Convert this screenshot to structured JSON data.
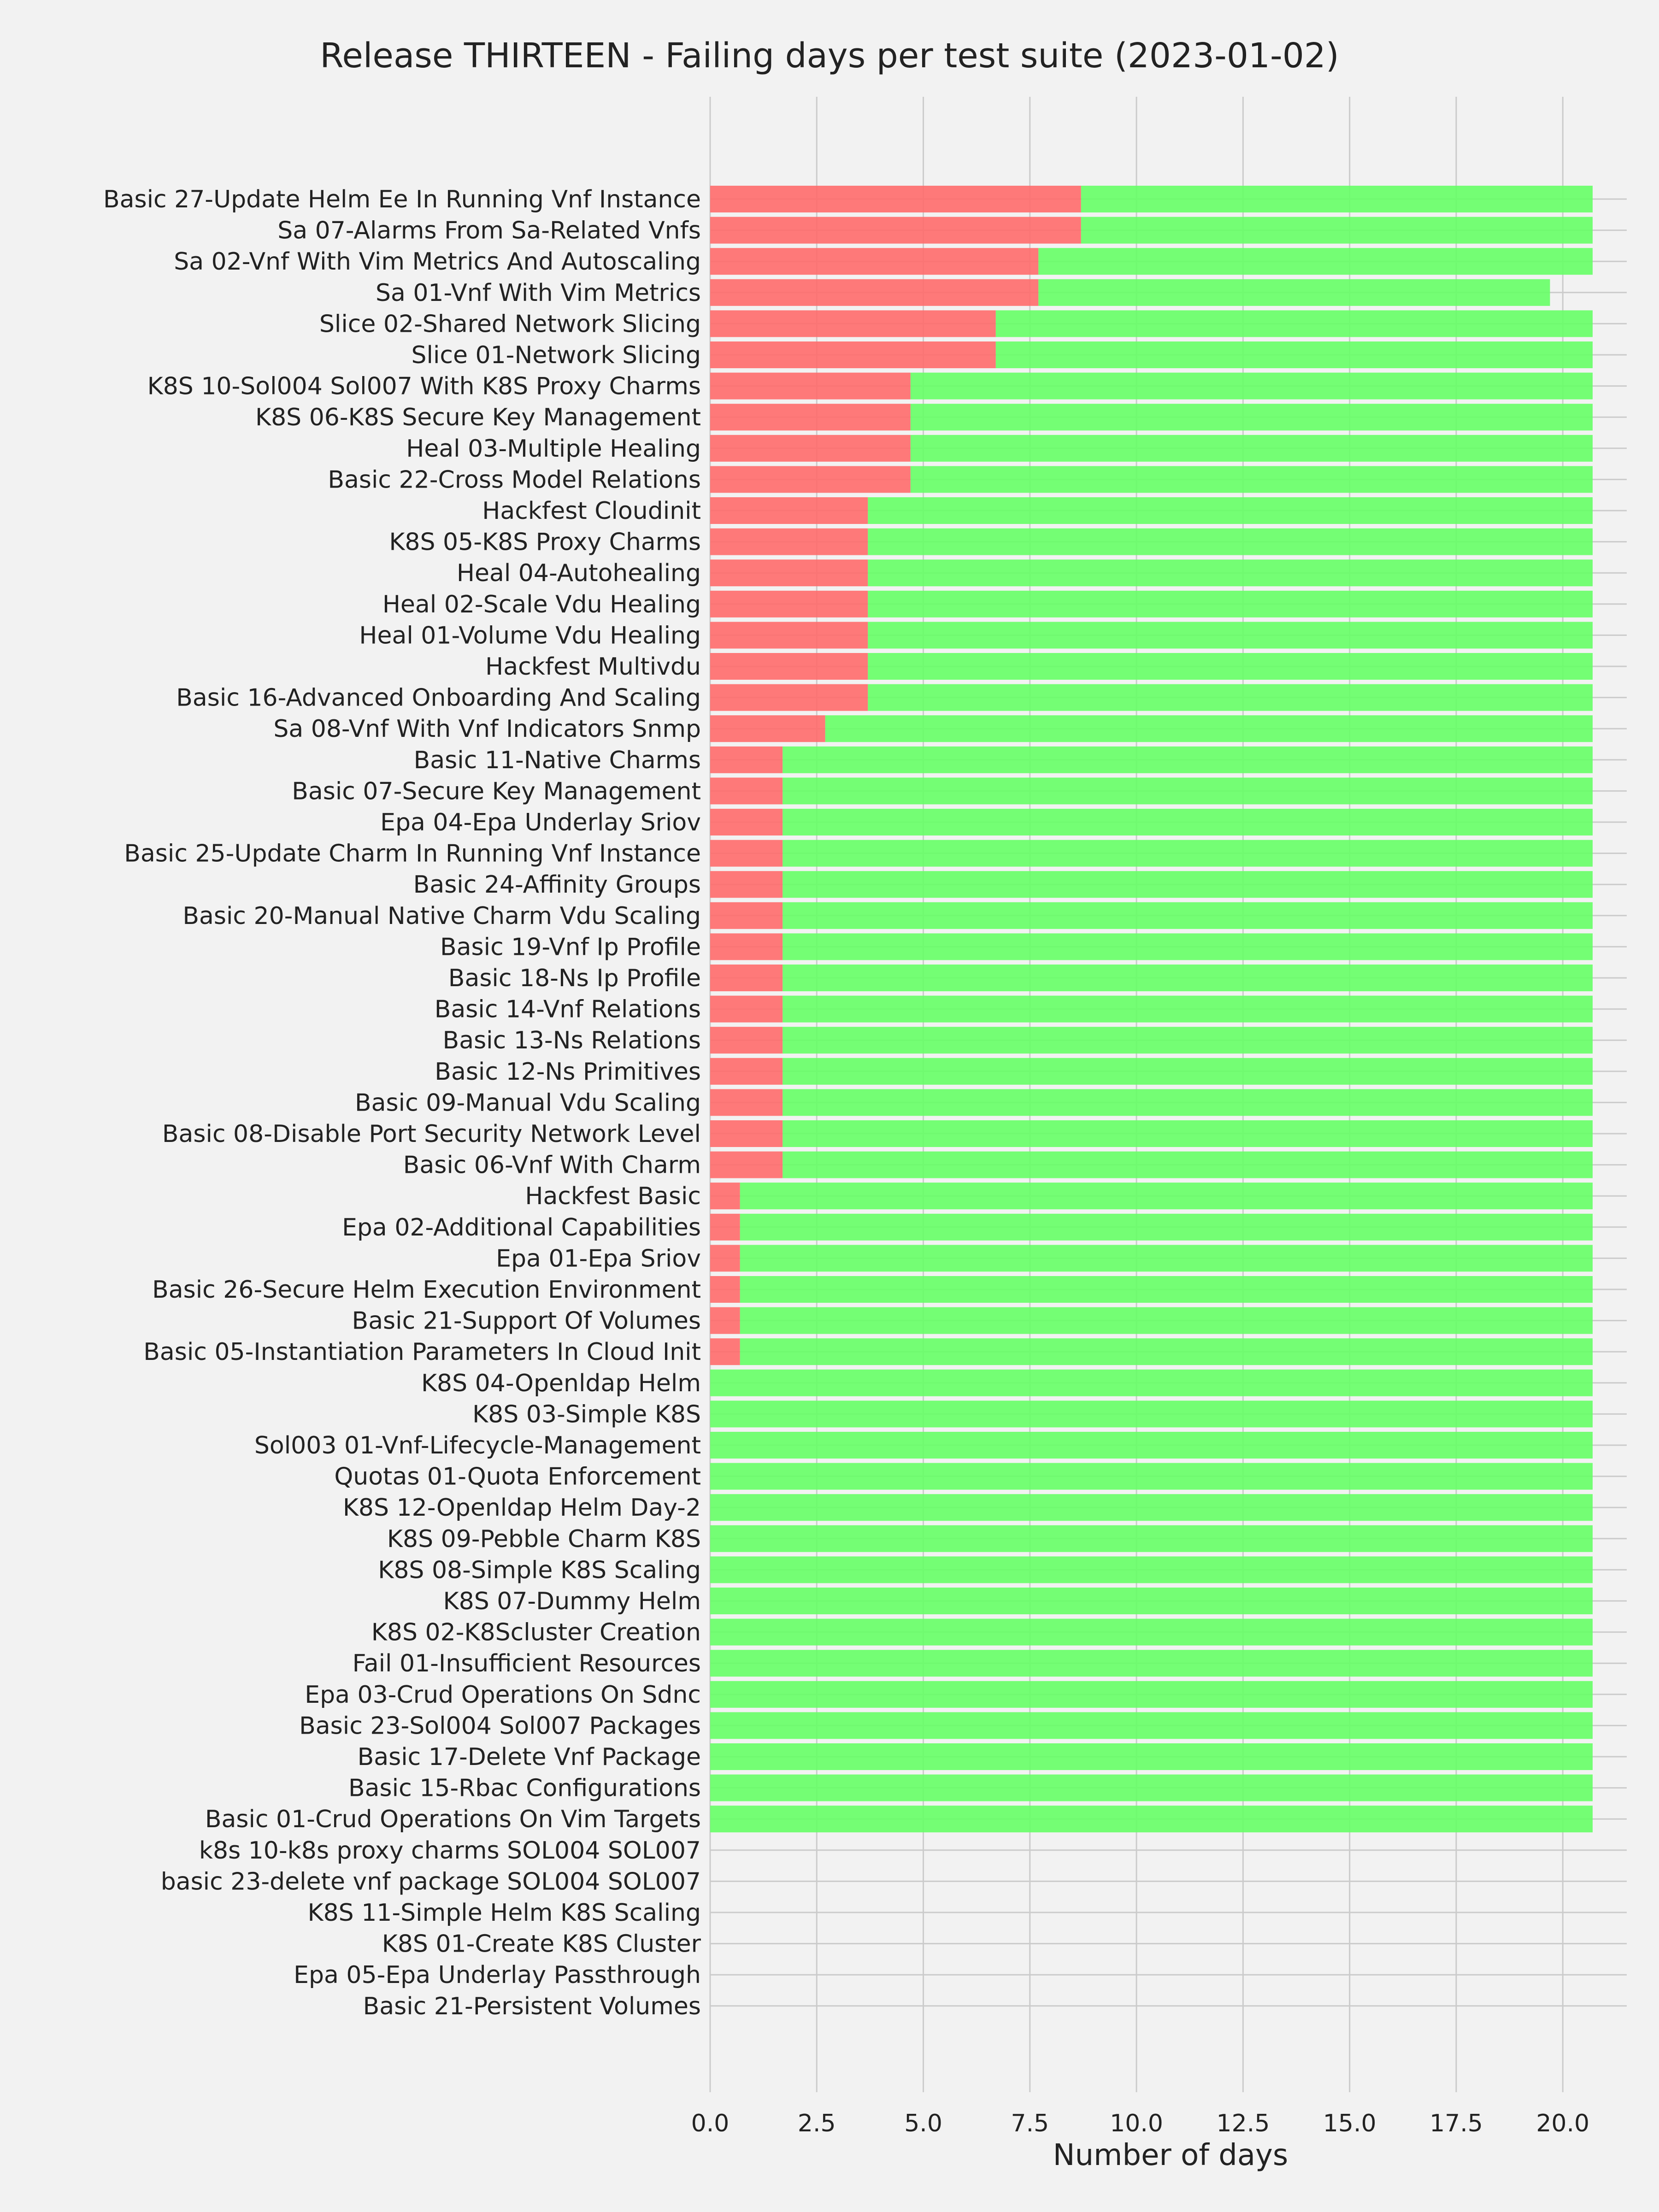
{
  "chart_data": {
    "type": "bar",
    "orientation": "horizontal",
    "stacked": true,
    "title": "Release THIRTEEN - Failing days per test suite (2023-01-02)",
    "xlabel": "Number of days",
    "ylabel": "",
    "xlim": [
      0,
      21.5
    ],
    "x_ticks": [
      "0.0",
      "2.5",
      "5.0",
      "7.5",
      "10.0",
      "12.5",
      "15.0",
      "17.5",
      "20.0"
    ],
    "grid": true,
    "legend": "none",
    "colors": {
      "failing": "#ff6b6b",
      "passing": "#66ff66",
      "background": "#f2f2f2",
      "grid": "#cbcbcb"
    },
    "categories": [
      "Basic 27-Update Helm Ee In Running Vnf Instance",
      "Sa 07-Alarms From Sa-Related Vnfs",
      "Sa 02-Vnf With Vim Metrics And Autoscaling",
      "Sa 01-Vnf With Vim Metrics",
      "Slice 02-Shared Network Slicing",
      "Slice 01-Network Slicing",
      "K8S 10-Sol004 Sol007 With K8S Proxy Charms",
      "K8S 06-K8S Secure Key Management",
      "Heal 03-Multiple Healing",
      "Basic 22-Cross Model Relations",
      "Hackfest Cloudinit",
      "K8S 05-K8S Proxy Charms",
      "Heal 04-Autohealing",
      "Heal 02-Scale Vdu Healing",
      "Heal 01-Volume Vdu Healing",
      "Hackfest Multivdu",
      "Basic 16-Advanced Onboarding And Scaling",
      "Sa 08-Vnf With Vnf Indicators Snmp",
      "Basic 11-Native Charms",
      "Basic 07-Secure Key Management",
      "Epa 04-Epa Underlay Sriov",
      "Basic 25-Update Charm In Running Vnf Instance",
      "Basic 24-Affinity Groups",
      "Basic 20-Manual Native Charm Vdu Scaling",
      "Basic 19-Vnf Ip Profile",
      "Basic 18-Ns Ip Profile",
      "Basic 14-Vnf Relations",
      "Basic 13-Ns Relations",
      "Basic 12-Ns Primitives",
      "Basic 09-Manual Vdu Scaling",
      "Basic 08-Disable Port Security Network Level",
      "Basic 06-Vnf With Charm",
      "Hackfest Basic",
      "Epa 02-Additional Capabilities",
      "Epa 01-Epa Sriov",
      "Basic 26-Secure Helm Execution Environment",
      "Basic 21-Support Of Volumes",
      "Basic 05-Instantiation Parameters In Cloud Init",
      "K8S 04-Openldap Helm",
      "K8S 03-Simple K8S",
      "Sol003 01-Vnf-Lifecycle-Management",
      "Quotas 01-Quota Enforcement",
      "K8S 12-Openldap Helm Day-2",
      "K8S 09-Pebble Charm K8S",
      "K8S 08-Simple K8S Scaling",
      "K8S 07-Dummy Helm",
      "K8S 02-K8Scluster Creation",
      "Fail 01-Insufficient Resources",
      "Epa 03-Crud Operations On Sdnc",
      "Basic 23-Sol004 Sol007 Packages",
      "Basic 17-Delete Vnf Package",
      "Basic 15-Rbac Configurations",
      "Basic 01-Crud Operations On Vim Targets",
      "k8s 10-k8s proxy charms SOL004 SOL007",
      "basic 23-delete vnf package SOL004 SOL007",
      "K8S 11-Simple Helm K8S Scaling",
      "K8S 01-Create K8S Cluster",
      "Epa 05-Epa Underlay Passthrough",
      "Basic 21-Persistent Volumes"
    ],
    "series": [
      {
        "color": "#ff6b6b",
        "values": [
          9,
          9,
          8,
          8,
          7,
          7,
          5,
          5,
          5,
          5,
          4,
          4,
          4,
          4,
          4,
          4,
          4,
          3,
          2,
          2,
          2,
          2,
          2,
          2,
          2,
          2,
          2,
          2,
          2,
          2,
          2,
          2,
          1,
          1,
          1,
          1,
          1,
          1,
          0,
          0,
          0,
          0,
          0,
          0,
          0,
          0,
          0,
          0,
          0,
          0,
          0,
          0,
          0,
          0,
          0,
          0,
          0,
          0,
          0
        ]
      },
      {
        "color": "#66ff66",
        "values": [
          12,
          12,
          13,
          12,
          14,
          14,
          16,
          16,
          16,
          16,
          17,
          17,
          17,
          17,
          17,
          17,
          17,
          18,
          19,
          19,
          19,
          19,
          19,
          19,
          19,
          19,
          19,
          19,
          19,
          19,
          19,
          19,
          20,
          20,
          20,
          20,
          20,
          20,
          21,
          21,
          21,
          21,
          21,
          21,
          21,
          21,
          21,
          21,
          21,
          21,
          21,
          21,
          21,
          0,
          0,
          0,
          0,
          0,
          0
        ]
      }
    ]
  }
}
